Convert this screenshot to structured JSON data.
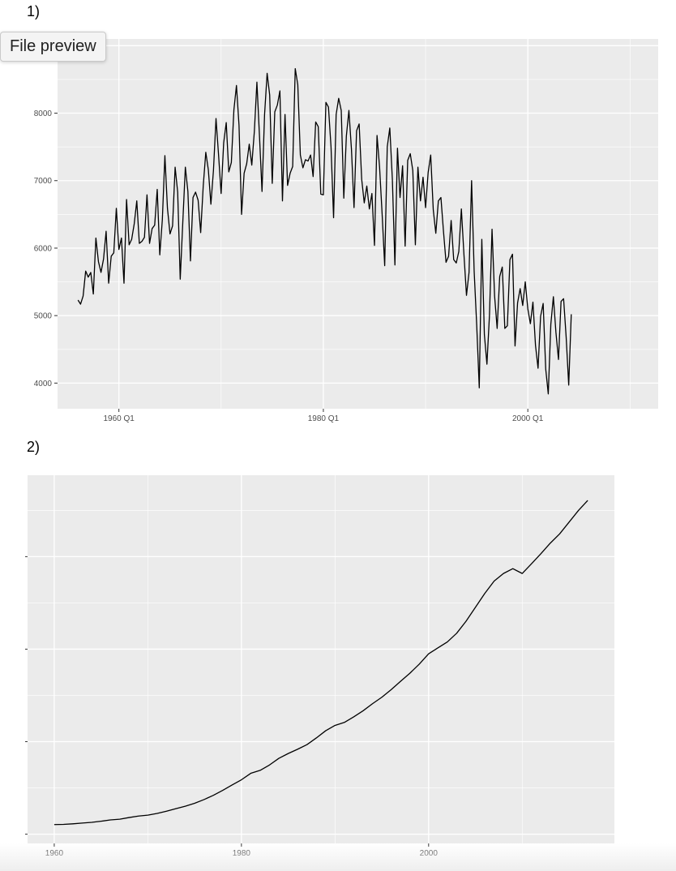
{
  "labels": {
    "plot1": "1)",
    "plot2": "2)"
  },
  "tooltip": {
    "text": "File preview"
  },
  "chart_data": [
    {
      "type": "line",
      "title": "",
      "xlabel": "",
      "ylabel": "",
      "x_tick_labels": [
        "1960 Q1",
        "1980 Q1",
        "2000 Q1"
      ],
      "x_ticks": [
        1960,
        1980,
        2000
      ],
      "y_ticks": [
        4000,
        5000,
        6000,
        7000,
        8000
      ],
      "xlim": [
        1954.0,
        2012.75
      ],
      "ylim": [
        3620,
        9100
      ],
      "grid": true,
      "panel_color": "#ebebeb",
      "line_color": "#000000",
      "series": [
        {
          "start_year": 1956,
          "frequency": 4,
          "values": [
            5230,
            5170,
            5290,
            5660,
            5570,
            5640,
            5320,
            6150,
            5800,
            5640,
            5840,
            6250,
            5480,
            5880,
            5930,
            6590,
            5980,
            6150,
            5480,
            6720,
            6050,
            6130,
            6360,
            6700,
            6070,
            6100,
            6160,
            6790,
            6070,
            6290,
            6340,
            6870,
            5900,
            6420,
            7370,
            6590,
            6210,
            6330,
            7200,
            6830,
            5540,
            6380,
            7200,
            6840,
            5810,
            6750,
            6830,
            6710,
            6230,
            6920,
            7420,
            7160,
            6650,
            7150,
            7920,
            7380,
            6810,
            7560,
            7860,
            7130,
            7270,
            8050,
            8410,
            7820,
            6500,
            7110,
            7250,
            7540,
            7230,
            7730,
            8460,
            7670,
            6840,
            7980,
            8590,
            8270,
            6960,
            8020,
            8120,
            8330,
            6700,
            7980,
            6930,
            7110,
            7210,
            8660,
            8420,
            7380,
            7190,
            7310,
            7290,
            7380,
            7060,
            7870,
            7800,
            6800,
            6790,
            8160,
            8090,
            7500,
            6450,
            7980,
            8220,
            8040,
            6740,
            7660,
            8040,
            7460,
            6600,
            7740,
            7840,
            7020,
            6670,
            6920,
            6580,
            6810,
            6040,
            7670,
            7200,
            6500,
            5740,
            7500,
            7780,
            7020,
            5750,
            7480,
            6750,
            7220,
            6030,
            7300,
            7400,
            7150,
            6050,
            7200,
            6700,
            7050,
            6600,
            7120,
            7380,
            6570,
            6220,
            6700,
            6750,
            6250,
            5790,
            5880,
            6410,
            5830,
            5780,
            5950,
            6580,
            5910,
            5300,
            5640,
            7000,
            5660,
            4860,
            3930,
            6130,
            4720,
            4280,
            5010,
            6280,
            5290,
            4810,
            5580,
            5720,
            4810,
            4850,
            5830,
            5910,
            4550,
            5190,
            5400,
            5150,
            5500,
            5100,
            4880,
            5200,
            4560,
            4220,
            4990,
            5180,
            4210,
            3840,
            4870,
            5280,
            4750,
            4350,
            5210,
            5250,
            4680,
            3970,
            5020
          ]
        }
      ]
    },
    {
      "type": "line",
      "title": "",
      "xlabel": "",
      "ylabel": "",
      "x_tick_labels": [
        "1960",
        "1980",
        "2000"
      ],
      "x_ticks": [
        1960,
        1980,
        2000
      ],
      "y_ticks": [
        0,
        5,
        10,
        15
      ],
      "y_tick_labels": [
        "",
        "",
        "",
        ""
      ],
      "xlim": [
        1957.15,
        2019.85
      ],
      "ylim": [
        -0.5,
        19.4
      ],
      "grid": true,
      "panel_color": "#ebebeb",
      "line_color": "#000000",
      "series": [
        {
          "x": [
            1960,
            1961,
            1962,
            1963,
            1964,
            1965,
            1966,
            1967,
            1968,
            1969,
            1970,
            1971,
            1972,
            1973,
            1974,
            1975,
            1976,
            1977,
            1978,
            1979,
            1980,
            1981,
            1982,
            1983,
            1984,
            1985,
            1986,
            1987,
            1988,
            1989,
            1990,
            1991,
            1992,
            1993,
            1994,
            1995,
            1996,
            1997,
            1998,
            1999,
            2000,
            2001,
            2002,
            2003,
            2004,
            2005,
            2006,
            2007,
            2008,
            2009,
            2010,
            2011,
            2012,
            2013,
            2014,
            2015,
            2016,
            2017
          ],
          "values": [
            0.52,
            0.53,
            0.56,
            0.6,
            0.64,
            0.7,
            0.77,
            0.81,
            0.9,
            0.98,
            1.03,
            1.12,
            1.24,
            1.38,
            1.51,
            1.67,
            1.87,
            2.1,
            2.37,
            2.66,
            2.94,
            3.29,
            3.45,
            3.74,
            4.1,
            4.36,
            4.59,
            4.84,
            5.2,
            5.59,
            5.88,
            6.04,
            6.34,
            6.67,
            7.05,
            7.4,
            7.81,
            8.26,
            8.7,
            9.19,
            9.75,
            10.07,
            10.39,
            10.86,
            11.51,
            12.26,
            13.01,
            13.68,
            14.09,
            14.35,
            14.09,
            14.62,
            15.16,
            15.73,
            16.23,
            16.86,
            17.49,
            18.04
          ]
        }
      ]
    }
  ]
}
